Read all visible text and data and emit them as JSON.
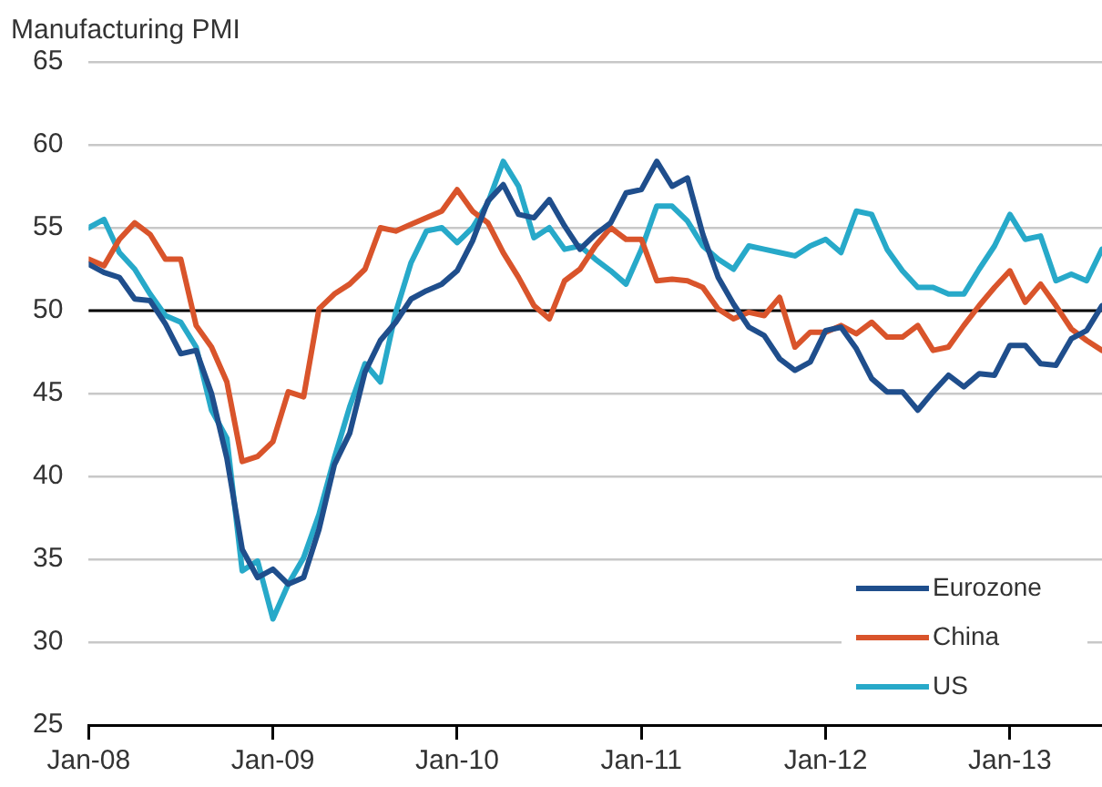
{
  "chart_data": {
    "type": "line",
    "title": "Manufacturing PMI",
    "x": [
      "2008-01",
      "2008-02",
      "2008-03",
      "2008-04",
      "2008-05",
      "2008-06",
      "2008-07",
      "2008-08",
      "2008-09",
      "2008-10",
      "2008-11",
      "2008-12",
      "2009-01",
      "2009-02",
      "2009-03",
      "2009-04",
      "2009-05",
      "2009-06",
      "2009-07",
      "2009-08",
      "2009-09",
      "2009-10",
      "2009-11",
      "2009-12",
      "2010-01",
      "2010-02",
      "2010-03",
      "2010-04",
      "2010-05",
      "2010-06",
      "2010-07",
      "2010-08",
      "2010-09",
      "2010-10",
      "2010-11",
      "2010-12",
      "2011-01",
      "2011-02",
      "2011-03",
      "2011-04",
      "2011-05",
      "2011-06",
      "2011-07",
      "2011-08",
      "2011-09",
      "2011-10",
      "2011-11",
      "2011-12",
      "2012-01",
      "2012-02",
      "2012-03",
      "2012-04",
      "2012-05",
      "2012-06",
      "2012-07",
      "2012-08",
      "2012-09",
      "2012-10",
      "2012-11",
      "2012-12",
      "2013-01",
      "2013-02",
      "2013-03",
      "2013-04",
      "2013-05",
      "2013-06",
      "2013-07"
    ],
    "series": [
      {
        "name": "Eurozone",
        "color": "#1f4e8c",
        "values": [
          52.8,
          52.3,
          52.0,
          50.7,
          50.6,
          49.2,
          47.4,
          47.6,
          45.0,
          41.1,
          35.6,
          33.9,
          34.4,
          33.5,
          33.9,
          36.8,
          40.7,
          42.6,
          46.3,
          48.2,
          49.3,
          50.7,
          51.2,
          51.6,
          52.4,
          54.2,
          56.6,
          57.6,
          55.8,
          55.6,
          56.7,
          55.1,
          53.7,
          54.6,
          55.3,
          57.1,
          57.3,
          59.0,
          57.5,
          58.0,
          54.6,
          52.0,
          50.4,
          49.0,
          48.5,
          47.1,
          46.4,
          46.9,
          48.8,
          49.0,
          47.7,
          45.9,
          45.1,
          45.1,
          44.0,
          45.1,
          46.1,
          45.4,
          46.2,
          46.1,
          47.9,
          47.9,
          46.8,
          46.7,
          48.3,
          48.8,
          50.3
        ]
      },
      {
        "name": "China",
        "color": "#d9542b",
        "values": [
          53.1,
          52.7,
          54.3,
          55.3,
          54.6,
          53.1,
          53.1,
          49.1,
          47.8,
          45.7,
          40.9,
          41.2,
          42.1,
          45.1,
          44.8,
          50.1,
          51.0,
          51.6,
          52.5,
          55.0,
          54.8,
          55.2,
          55.6,
          56.0,
          57.3,
          56.0,
          55.3,
          53.5,
          52.0,
          50.3,
          49.5,
          51.8,
          52.5,
          53.9,
          55.0,
          54.3,
          54.3,
          51.8,
          51.9,
          51.8,
          51.4,
          50.1,
          49.5,
          49.9,
          49.7,
          50.8,
          47.8,
          48.7,
          48.7,
          49.1,
          48.6,
          49.3,
          48.4,
          48.4,
          49.1,
          47.6,
          47.8,
          49.1,
          50.3,
          51.4,
          52.4,
          50.5,
          51.6,
          50.3,
          48.9,
          48.2,
          47.6
        ]
      },
      {
        "name": "US",
        "color": "#27a9c9",
        "values": [
          55.0,
          55.5,
          53.5,
          52.5,
          51.0,
          49.7,
          49.3,
          47.8,
          44.0,
          42.3,
          34.3,
          34.9,
          31.4,
          33.5,
          35.1,
          37.7,
          41.1,
          44.2,
          46.8,
          45.7,
          49.9,
          52.9,
          54.8,
          55.0,
          54.1,
          55.0,
          56.5,
          59.0,
          57.5,
          54.4,
          55.0,
          53.7,
          53.9,
          53.1,
          52.4,
          51.6,
          53.7,
          56.3,
          56.3,
          55.4,
          53.9,
          53.1,
          52.5,
          53.9,
          53.7,
          53.5,
          53.3,
          53.9,
          54.3,
          53.5,
          56.0,
          55.8,
          53.7,
          52.4,
          51.4,
          51.4,
          51.0,
          51.0,
          52.5,
          53.9,
          55.8,
          54.3,
          54.5,
          51.8,
          52.2,
          51.8,
          53.7
        ]
      }
    ],
    "xlim": [
      "2008-01",
      "2013-07"
    ],
    "xticks": [
      {
        "value": "2008-01",
        "label": "Jan-08"
      },
      {
        "value": "2009-01",
        "label": "Jan-09"
      },
      {
        "value": "2010-01",
        "label": "Jan-10"
      },
      {
        "value": "2011-01",
        "label": "Jan-11"
      },
      {
        "value": "2012-01",
        "label": "Jan-12"
      },
      {
        "value": "2013-01",
        "label": "Jan-13"
      }
    ],
    "ylim": [
      25,
      65
    ],
    "yticks": [
      25,
      30,
      35,
      40,
      45,
      50,
      55,
      60,
      65
    ],
    "ref_lines": [
      {
        "axis": "y",
        "value": 50,
        "color": "#000000"
      }
    ],
    "grid": "y",
    "legend": "bottom right",
    "marker": "none",
    "line_style": "solid"
  }
}
